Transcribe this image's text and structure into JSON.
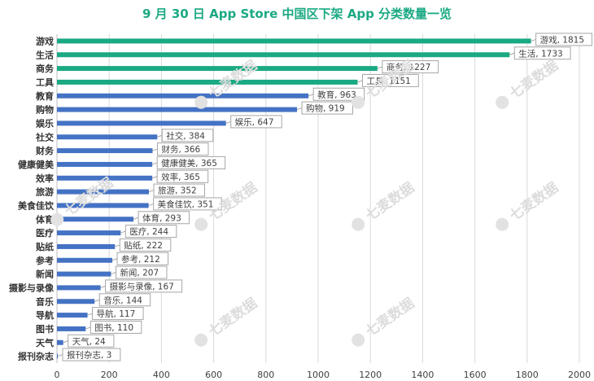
{
  "title": "9 月 30 日 App Store 中国区下架 App 分类数量一览",
  "watermark": "七麦数据",
  "colors": {
    "top4": "#1aa983",
    "rest": "#4472c4",
    "title": "#1aa983"
  },
  "chart_data": {
    "type": "bar",
    "orientation": "horizontal",
    "categories": [
      "游戏",
      "生活",
      "商务",
      "工具",
      "教育",
      "购物",
      "娱乐",
      "社交",
      "财务",
      "健康健美",
      "效率",
      "旅游",
      "美食佳饮",
      "体育",
      "医疗",
      "贴纸",
      "参考",
      "新闻",
      "摄影与录像",
      "音乐",
      "导航",
      "图书",
      "天气",
      "报刊杂志"
    ],
    "values": [
      1815,
      1733,
      1227,
      1151,
      963,
      919,
      647,
      384,
      366,
      365,
      365,
      352,
      351,
      293,
      244,
      222,
      212,
      207,
      167,
      144,
      117,
      110,
      24,
      3
    ],
    "data_labels": [
      "游戏, 1815",
      "生活, 1733",
      "商务, 1227",
      "工具, 1151",
      "教育, 963",
      "购物, 919",
      "娱乐, 647",
      "社交, 384",
      "财务, 366",
      "健康健美, 365",
      "效率, 365",
      "旅游, 352",
      "美食佳饮, 351",
      "体育, 293",
      "医疗, 244",
      "贴纸, 222",
      "参考, 212",
      "新闻, 207",
      "摄影与录像, 167",
      "音乐, 144",
      "导航, 117",
      "图书, 110",
      "天气, 24",
      "报刊杂志, 3"
    ],
    "xlim": [
      0,
      2000
    ],
    "xticks": [
      "0",
      "200",
      "400",
      "600",
      "800",
      "1000",
      "1200",
      "1400",
      "1600",
      "1800",
      "2000"
    ],
    "grid": true,
    "legend": "none"
  }
}
